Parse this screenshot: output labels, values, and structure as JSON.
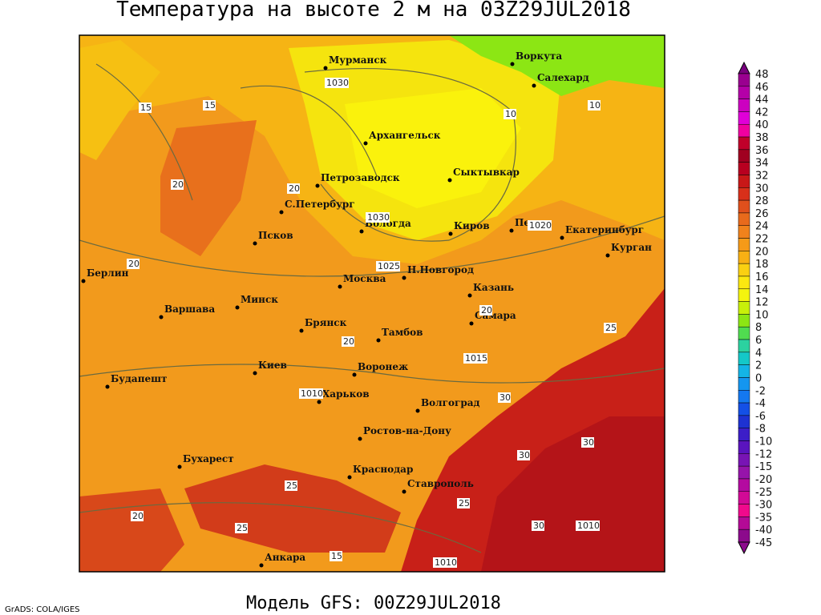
{
  "header": {
    "title": "Температура на высоте 2 м на 03Z29JUL2018"
  },
  "footer": {
    "model": "Модель GFS: 00Z29JUL2018",
    "credit": "GrADS: COLA/IGES"
  },
  "cities": [
    "Мурманск",
    "Воркута",
    "Салехард",
    "Архангельск",
    "Петрозаводск",
    "Сыктывкар",
    "С.Петербург",
    "Вологда",
    "Киров",
    "Пермь",
    "Екатеринбург",
    "Курган",
    "Псков",
    "Москва",
    "Н.Новгород",
    "Казань",
    "Берлин",
    "Варшава",
    "Минск",
    "Брянск",
    "Тамбов",
    "Самара",
    "Киев",
    "Воронеж",
    "Будапешт",
    "Харьков",
    "Волгоград",
    "Ростов-на-Дону",
    "Бухарест",
    "Краснодар",
    "Ставрополь",
    "Анкара"
  ],
  "contour_labels": [
    "1030",
    "1030",
    "1025",
    "1015",
    "1010",
    "1010",
    "1020",
    "1010",
    "15",
    "15",
    "20",
    "20",
    "10",
    "10",
    "20",
    "25",
    "20",
    "20",
    "30",
    "30",
    "30",
    "25",
    "25",
    "20",
    "15",
    "30",
    "25"
  ],
  "legend": {
    "colors": [
      "#7a0080",
      "#9a0090",
      "#b400a8",
      "#cc00c0",
      "#e000d8",
      "#f000a0",
      "#c0002a",
      "#a00020",
      "#b80020",
      "#c81818",
      "#d8301a",
      "#e0501c",
      "#e86a1c",
      "#f0821c",
      "#f59a18",
      "#f8b014",
      "#fad012",
      "#fbe810",
      "#f4f40e",
      "#c8f00a",
      "#8ce614",
      "#50dc50",
      "#2cd2a0",
      "#14c8c8",
      "#14b4e6",
      "#1496f0",
      "#1478f0",
      "#1450e6",
      "#1e32d2",
      "#3c1ec8",
      "#5a14be",
      "#7814b4",
      "#9614aa",
      "#b40aa0",
      "#d20a96",
      "#f00a8c",
      "#b40a96",
      "#8c0a8c"
    ],
    "values": [
      48,
      46,
      44,
      42,
      40,
      38,
      36,
      34,
      32,
      30,
      28,
      26,
      24,
      22,
      20,
      18,
      16,
      14,
      12,
      10,
      8,
      6,
      4,
      2,
      0,
      -2,
      -4,
      -6,
      -8,
      -10,
      -12,
      -15,
      -20,
      -25,
      -30,
      -35,
      -40,
      -45
    ]
  }
}
